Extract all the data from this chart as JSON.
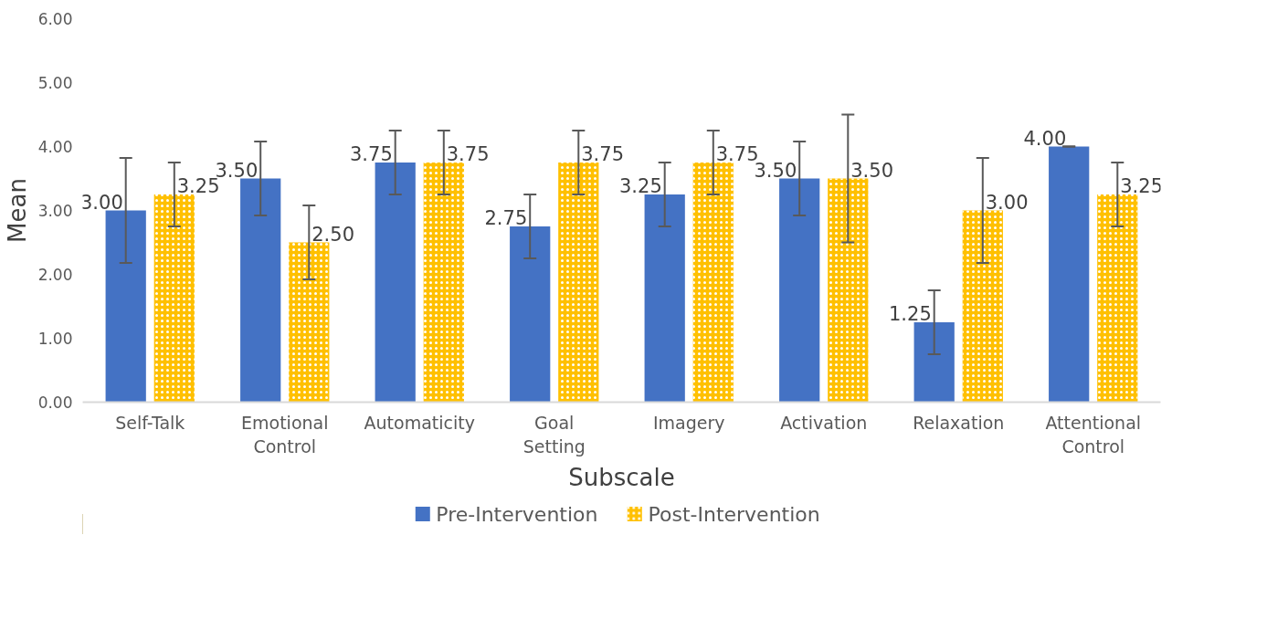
{
  "chart_data": {
    "type": "bar",
    "xlabel": "Subscale",
    "ylabel": "Mean",
    "categories": [
      "Self-Talk",
      "Emotional Control",
      "Automaticity",
      "Goal Setting",
      "Imagery",
      "Activation",
      "Relaxation",
      "Attentional Control"
    ],
    "series": [
      {
        "name": "Pre-Intervention",
        "color": "#4472c4",
        "values": [
          3.0,
          3.5,
          3.75,
          2.75,
          3.25,
          3.5,
          1.25,
          4.0
        ],
        "value_labels": [
          "3.00",
          "3.50",
          "3.75",
          "2.75",
          "3.25",
          "3.50",
          "1.25",
          "4.00"
        ],
        "errors": [
          0.82,
          0.58,
          0.5,
          0.5,
          0.5,
          0.58,
          0.5,
          0
        ]
      },
      {
        "name": "Post-Intervention",
        "color": "#ffc000",
        "values": [
          3.25,
          2.5,
          3.75,
          3.75,
          3.75,
          3.5,
          3.0,
          3.25
        ],
        "value_labels": [
          "3.25",
          "2.50",
          "3.75",
          "3.75",
          "3.75",
          "3.50",
          "3.00",
          "3.25"
        ],
        "errors": [
          0.5,
          0.58,
          0.5,
          0.5,
          0.5,
          1.0,
          0.82,
          0.5
        ]
      }
    ],
    "ylim": [
      0,
      6
    ],
    "yticks": [
      {
        "value": 0,
        "label": "0.00"
      },
      {
        "value": 1,
        "label": "1.00"
      },
      {
        "value": 2,
        "label": "2.00"
      },
      {
        "value": 3,
        "label": "3.00"
      },
      {
        "value": 4,
        "label": "4.00"
      },
      {
        "value": 5,
        "label": "5.00"
      },
      {
        "value": 6,
        "label": "6.00"
      }
    ],
    "grid": false,
    "legend": "bottom"
  }
}
